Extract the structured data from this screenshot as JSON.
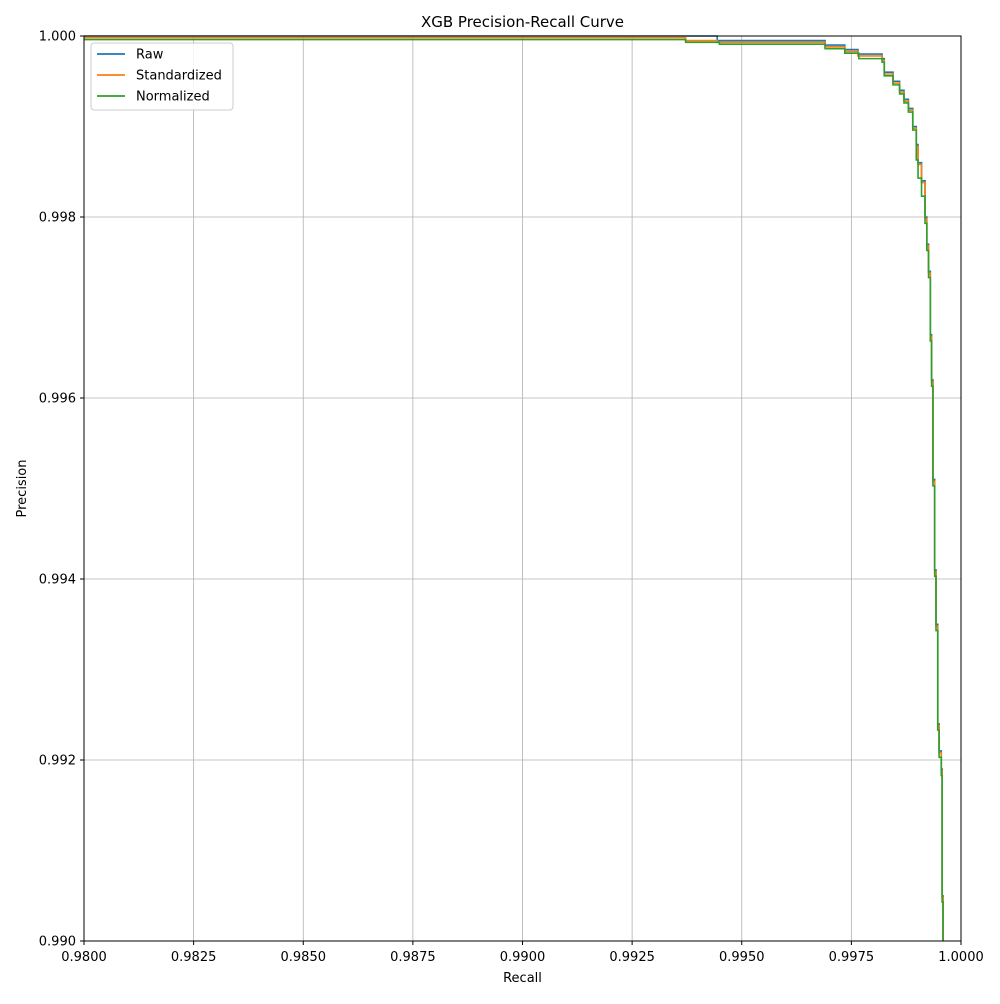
{
  "chart_data": {
    "type": "line",
    "title": "XGB Precision-Recall Curve",
    "xlabel": "Recall",
    "ylabel": "Precision",
    "xlim": [
      0.98,
      1.0
    ],
    "ylim": [
      0.99,
      1.0
    ],
    "xticks": [
      0.98,
      0.9825,
      0.985,
      0.9875,
      0.99,
      0.9925,
      0.995,
      0.9975,
      1.0
    ],
    "xtick_labels": [
      "0.9800",
      "0.9825",
      "0.9850",
      "0.9875",
      "0.9900",
      "0.9925",
      "0.9950",
      "0.9975",
      "1.0000"
    ],
    "yticks": [
      0.99,
      0.992,
      0.994,
      0.996,
      0.998,
      1.0
    ],
    "ytick_labels": [
      "0.990",
      "0.992",
      "0.994",
      "0.996",
      "0.998",
      "1.000"
    ],
    "grid": true,
    "legend_position": "top-left",
    "step_style": "post",
    "series": [
      {
        "name": "Raw",
        "color": "#1f77b4",
        "points": [
          [
            0.98,
            1.0
          ],
          [
            0.99444,
            1.0
          ],
          [
            0.99444,
            0.99995
          ],
          [
            0.9969,
            0.99995
          ],
          [
            0.9969,
            0.9999
          ],
          [
            0.99735,
            0.9999
          ],
          [
            0.99735,
            0.99985
          ],
          [
            0.99765,
            0.99985
          ],
          [
            0.99765,
            0.9998
          ],
          [
            0.9982,
            0.9998
          ],
          [
            0.9982,
            0.99975
          ],
          [
            0.99825,
            0.99975
          ],
          [
            0.99825,
            0.9996
          ],
          [
            0.99845,
            0.9996
          ],
          [
            0.99845,
            0.9995
          ],
          [
            0.9986,
            0.9995
          ],
          [
            0.9986,
            0.9994
          ],
          [
            0.9987,
            0.9994
          ],
          [
            0.9987,
            0.9993
          ],
          [
            0.9988,
            0.9993
          ],
          [
            0.9988,
            0.9992
          ],
          [
            0.9989,
            0.9992
          ],
          [
            0.9989,
            0.999
          ],
          [
            0.99898,
            0.999
          ],
          [
            0.99898,
            0.9988
          ],
          [
            0.99902,
            0.9988
          ],
          [
            0.99902,
            0.9986
          ],
          [
            0.9991,
            0.9986
          ],
          [
            0.9991,
            0.9984
          ],
          [
            0.99918,
            0.9984
          ],
          [
            0.99918,
            0.998
          ],
          [
            0.99922,
            0.998
          ],
          [
            0.99922,
            0.9977
          ],
          [
            0.99926,
            0.9977
          ],
          [
            0.99926,
            0.9974
          ],
          [
            0.9993,
            0.9974
          ],
          [
            0.9993,
            0.9967
          ],
          [
            0.99933,
            0.9967
          ],
          [
            0.99933,
            0.9962
          ],
          [
            0.99936,
            0.9962
          ],
          [
            0.99936,
            0.9951
          ],
          [
            0.9994,
            0.9951
          ],
          [
            0.9994,
            0.9941
          ],
          [
            0.99943,
            0.9941
          ],
          [
            0.99943,
            0.9935
          ],
          [
            0.99947,
            0.9935
          ],
          [
            0.99947,
            0.9924
          ],
          [
            0.9995,
            0.9924
          ],
          [
            0.9995,
            0.9921
          ],
          [
            0.99955,
            0.9921
          ],
          [
            0.99955,
            0.9919
          ],
          [
            0.99957,
            0.9919
          ],
          [
            0.99957,
            0.9905
          ],
          [
            0.99959,
            0.9905
          ],
          [
            0.99959,
            0.99
          ]
        ]
      },
      {
        "name": "Standardized",
        "color": "#ff7f0e",
        "points": [
          [
            0.98,
            0.99998
          ],
          [
            0.99372,
            0.99998
          ],
          [
            0.99372,
            0.99995
          ],
          [
            0.99444,
            0.99995
          ],
          [
            0.99444,
            0.99993
          ],
          [
            0.9969,
            0.99993
          ],
          [
            0.9969,
            0.99988
          ],
          [
            0.99735,
            0.99988
          ],
          [
            0.99735,
            0.99983
          ],
          [
            0.99765,
            0.99983
          ],
          [
            0.99765,
            0.99978
          ],
          [
            0.9982,
            0.99978
          ],
          [
            0.9982,
            0.99973
          ],
          [
            0.99825,
            0.99973
          ],
          [
            0.99825,
            0.99958
          ],
          [
            0.99845,
            0.99958
          ],
          [
            0.99845,
            0.99948
          ],
          [
            0.9986,
            0.99948
          ],
          [
            0.9986,
            0.99938
          ],
          [
            0.9987,
            0.99938
          ],
          [
            0.9987,
            0.99928
          ],
          [
            0.9988,
            0.99928
          ],
          [
            0.9988,
            0.99918
          ],
          [
            0.9989,
            0.99918
          ],
          [
            0.9989,
            0.99898
          ],
          [
            0.99898,
            0.99898
          ],
          [
            0.99898,
            0.99878
          ],
          [
            0.99902,
            0.99878
          ],
          [
            0.99902,
            0.99858
          ],
          [
            0.9991,
            0.99858
          ],
          [
            0.9991,
            0.99838
          ],
          [
            0.99918,
            0.99838
          ],
          [
            0.99918,
            0.99798
          ],
          [
            0.99922,
            0.99798
          ],
          [
            0.99922,
            0.99768
          ],
          [
            0.99926,
            0.99768
          ],
          [
            0.99926,
            0.99738
          ],
          [
            0.9993,
            0.99738
          ],
          [
            0.9993,
            0.99668
          ],
          [
            0.99933,
            0.99668
          ],
          [
            0.99933,
            0.99618
          ],
          [
            0.99936,
            0.99618
          ],
          [
            0.99936,
            0.99508
          ],
          [
            0.9994,
            0.99508
          ],
          [
            0.9994,
            0.99408
          ],
          [
            0.99943,
            0.99408
          ],
          [
            0.99943,
            0.99348
          ],
          [
            0.99947,
            0.99348
          ],
          [
            0.99947,
            0.99238
          ],
          [
            0.9995,
            0.99238
          ],
          [
            0.9995,
            0.99208
          ],
          [
            0.99955,
            0.99208
          ],
          [
            0.99955,
            0.99188
          ],
          [
            0.99957,
            0.99188
          ],
          [
            0.99957,
            0.99048
          ],
          [
            0.99959,
            0.99048
          ],
          [
            0.99959,
            0.99
          ]
        ]
      },
      {
        "name": "Normalized",
        "color": "#2ca02c",
        "points": [
          [
            0.98,
            0.99996
          ],
          [
            0.99372,
            0.99996
          ],
          [
            0.99372,
            0.99993
          ],
          [
            0.99449,
            0.99993
          ],
          [
            0.99449,
            0.99991
          ],
          [
            0.9969,
            0.99991
          ],
          [
            0.9969,
            0.99986
          ],
          [
            0.99735,
            0.99986
          ],
          [
            0.99735,
            0.99981
          ],
          [
            0.99767,
            0.99981
          ],
          [
            0.99767,
            0.99975
          ],
          [
            0.9982,
            0.99975
          ],
          [
            0.9982,
            0.99971
          ],
          [
            0.99825,
            0.99971
          ],
          [
            0.99825,
            0.99956
          ],
          [
            0.99845,
            0.99956
          ],
          [
            0.99845,
            0.99946
          ],
          [
            0.9986,
            0.99946
          ],
          [
            0.9986,
            0.99936
          ],
          [
            0.9987,
            0.99936
          ],
          [
            0.9987,
            0.99926
          ],
          [
            0.9988,
            0.99926
          ],
          [
            0.9988,
            0.99916
          ],
          [
            0.9989,
            0.99916
          ],
          [
            0.9989,
            0.99896
          ],
          [
            0.99898,
            0.99896
          ],
          [
            0.99898,
            0.99863
          ],
          [
            0.99902,
            0.99863
          ],
          [
            0.99902,
            0.99843
          ],
          [
            0.9991,
            0.99843
          ],
          [
            0.9991,
            0.99823
          ],
          [
            0.99918,
            0.99823
          ],
          [
            0.99918,
            0.99793
          ],
          [
            0.99922,
            0.99793
          ],
          [
            0.99922,
            0.99763
          ],
          [
            0.99926,
            0.99763
          ],
          [
            0.99926,
            0.99733
          ],
          [
            0.9993,
            0.99733
          ],
          [
            0.9993,
            0.99663
          ],
          [
            0.99933,
            0.99663
          ],
          [
            0.99933,
            0.99613
          ],
          [
            0.99936,
            0.99613
          ],
          [
            0.99936,
            0.99503
          ],
          [
            0.9994,
            0.99503
          ],
          [
            0.9994,
            0.99403
          ],
          [
            0.99943,
            0.99403
          ],
          [
            0.99943,
            0.99343
          ],
          [
            0.99947,
            0.99343
          ],
          [
            0.99947,
            0.99233
          ],
          [
            0.9995,
            0.99233
          ],
          [
            0.9995,
            0.99203
          ],
          [
            0.99955,
            0.99203
          ],
          [
            0.99955,
            0.99183
          ],
          [
            0.99957,
            0.99183
          ],
          [
            0.99957,
            0.99043
          ],
          [
            0.99959,
            0.99043
          ],
          [
            0.99959,
            0.99
          ]
        ]
      }
    ]
  }
}
